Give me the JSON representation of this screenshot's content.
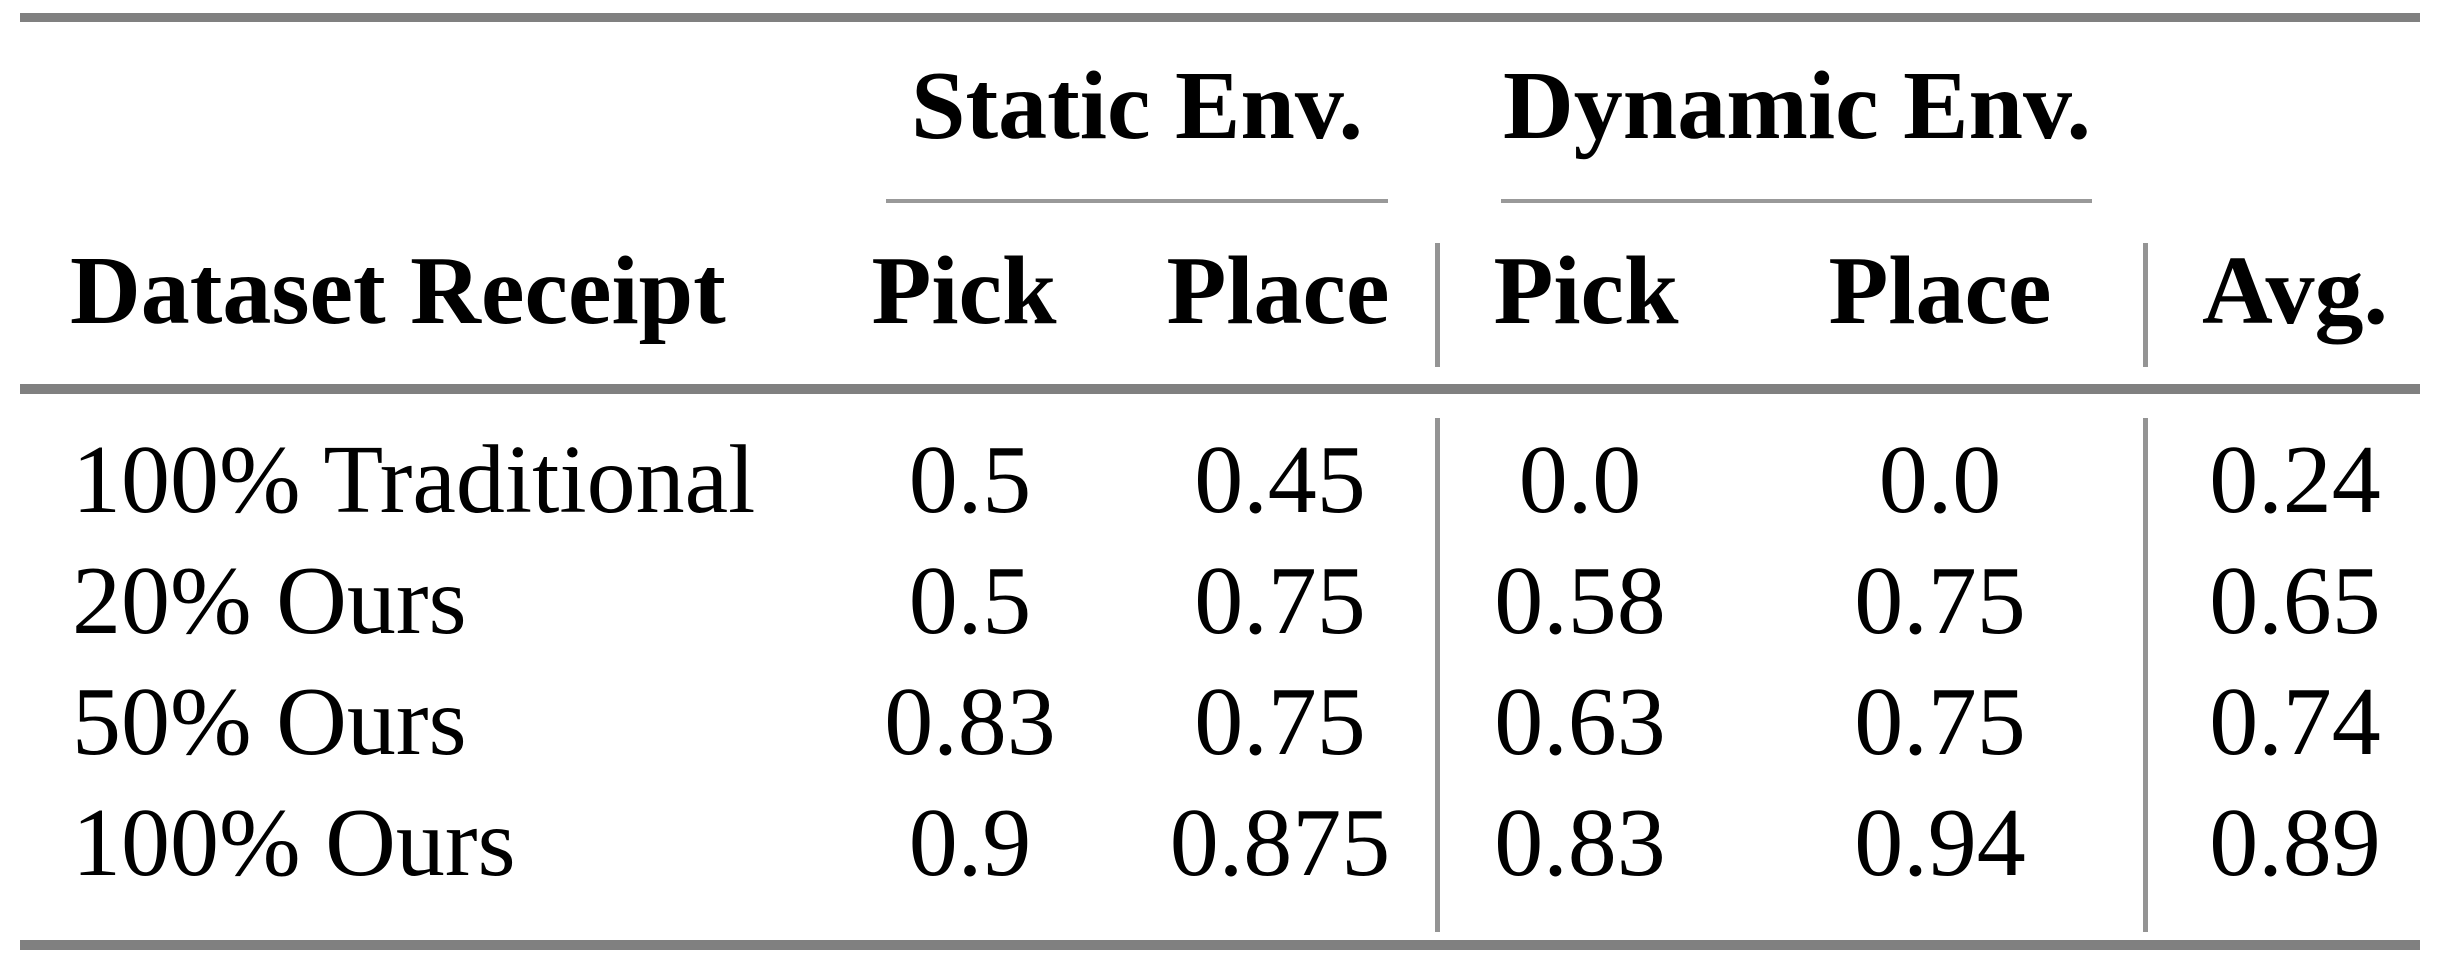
{
  "table": {
    "group_headers": {
      "static": "Static Env.",
      "dynamic": "Dynamic Env."
    },
    "column_headers": {
      "row_label": "Dataset Receipt",
      "static_pick": "Pick",
      "static_place": "Place",
      "dynamic_pick": "Pick",
      "dynamic_place": "Place",
      "avg": "Avg."
    },
    "rows": [
      {
        "label": "100% Traditional",
        "values": [
          "0.5",
          "0.45",
          "0.0",
          "0.0",
          "0.24"
        ]
      },
      {
        "label": "20% Ours",
        "values": [
          "0.5",
          "0.75",
          "0.58",
          "0.75",
          "0.65"
        ]
      },
      {
        "label": "50% Ours",
        "values": [
          "0.83",
          "0.75",
          "0.63",
          "0.75",
          "0.74"
        ]
      },
      {
        "label": "100% Ours",
        "values": [
          "0.9",
          "0.875",
          "0.83",
          "0.94",
          "0.89"
        ]
      }
    ]
  },
  "colors": {
    "rule_thick": "#808080",
    "rule_thin": "#999999",
    "text": "#000000",
    "background": "#ffffff"
  },
  "chart_data": {
    "type": "table",
    "title": "",
    "column_groups": [
      {
        "label": "Static Env.",
        "columns": [
          "Pick",
          "Place"
        ]
      },
      {
        "label": "Dynamic Env.",
        "columns": [
          "Pick",
          "Place"
        ]
      }
    ],
    "columns": [
      "Dataset Receipt",
      "Static Pick",
      "Static Place",
      "Dynamic Pick",
      "Dynamic Place",
      "Avg."
    ],
    "rows": [
      [
        "100% Traditional",
        0.5,
        0.45,
        0.0,
        0.0,
        0.24
      ],
      [
        "20% Ours",
        0.5,
        0.75,
        0.58,
        0.75,
        0.65
      ],
      [
        "50% Ours",
        0.83,
        0.75,
        0.63,
        0.75,
        0.74
      ],
      [
        "100% Ours",
        0.9,
        0.875,
        0.83,
        0.94,
        0.89
      ]
    ]
  }
}
